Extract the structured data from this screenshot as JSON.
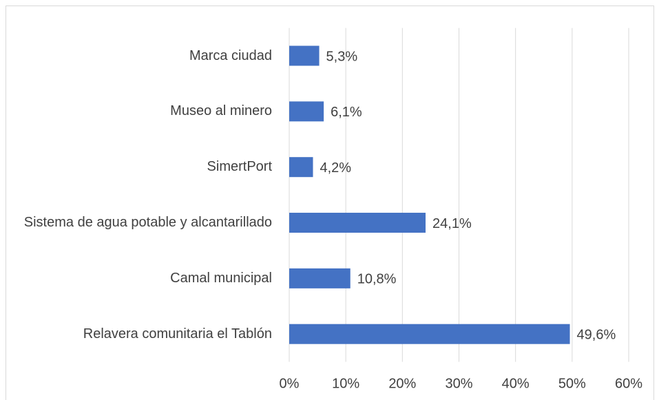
{
  "chart_data": {
    "type": "barh",
    "categories": [
      "Marca ciudad",
      "Museo al minero",
      "SimertPort",
      "Sistema de agua potable y alcantarillado",
      "Camal municipal",
      "Relavera comunitaria el Tablón"
    ],
    "values": [
      5.3,
      6.1,
      4.2,
      24.1,
      10.8,
      49.6
    ],
    "value_labels": [
      "5,3%",
      "6,1%",
      "4,2%",
      "24,1%",
      "10,8%",
      "49,6%"
    ],
    "color": "#4472c4",
    "xlim": [
      0,
      60
    ],
    "xticks": [
      {
        "value": 0,
        "label": "0%"
      },
      {
        "value": 10,
        "label": "10%"
      },
      {
        "value": 20,
        "label": "20%"
      },
      {
        "value": 30,
        "label": "30%"
      },
      {
        "value": 40,
        "label": "40%"
      },
      {
        "value": 50,
        "label": "50%"
      },
      {
        "value": 60,
        "label": "60%"
      }
    ],
    "grid": true
  }
}
